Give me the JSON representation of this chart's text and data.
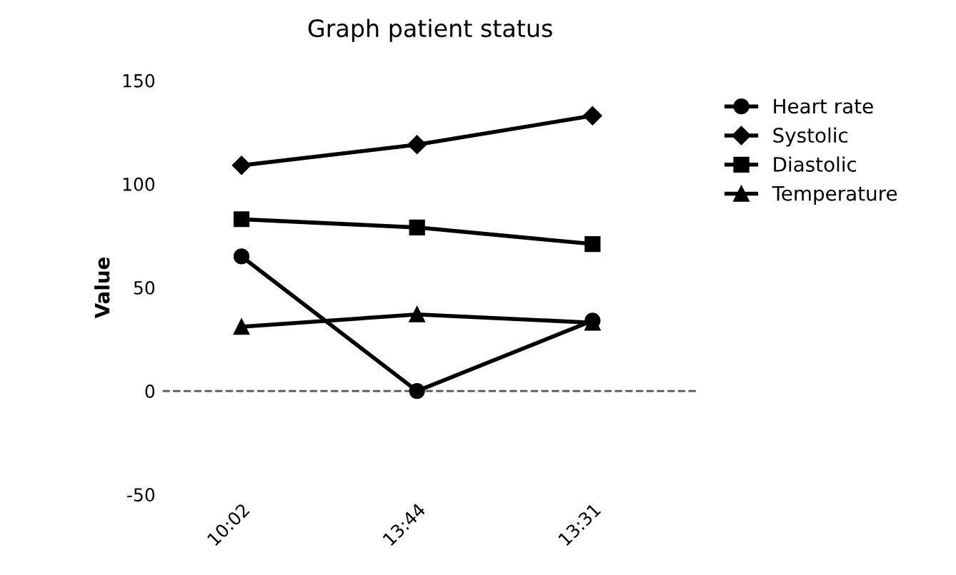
{
  "chart_data": {
    "type": "line",
    "title": "Graph patient status",
    "ylabel": "Value",
    "categories": [
      "10:02",
      "13:44",
      "13:31"
    ],
    "series": [
      {
        "name": "Heart rate",
        "color": "#000000",
        "marker": "circle",
        "values": [
          65,
          0,
          34
        ]
      },
      {
        "name": "Systolic",
        "color": "#000000",
        "marker": "diamond",
        "values": [
          109,
          119,
          133
        ]
      },
      {
        "name": "Diastolic",
        "color": "#000000",
        "marker": "square",
        "values": [
          83,
          79,
          71
        ]
      },
      {
        "name": "Temperature",
        "color": "#000000",
        "marker": "triangle",
        "values": [
          31,
          37,
          33
        ]
      }
    ],
    "ylim": [
      -50,
      150
    ],
    "yticks": [
      -50,
      0,
      50,
      100,
      150
    ],
    "ref_lines": [
      {
        "axis": "y",
        "value": 0,
        "color": "#555555",
        "line_style": "dashed"
      }
    ],
    "grid": false,
    "legend": "right",
    "line_style": "solid"
  }
}
